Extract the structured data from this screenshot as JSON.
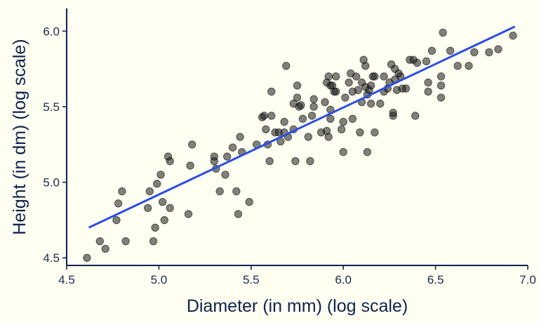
{
  "chart_data": {
    "type": "scatter",
    "title": "",
    "xlabel": "Diameter (in mm) (log scale)",
    "ylabel": "Height (in dm) (log scale)",
    "xlim": [
      4.5,
      7.0
    ],
    "ylim": [
      4.45,
      6.15
    ],
    "x_ticks": [
      4.5,
      5.0,
      5.5,
      6.0,
      6.5,
      7.0
    ],
    "x_tick_labels": [
      "4.5",
      "5.0",
      "5.5",
      "6.0",
      "6.5",
      "7.0"
    ],
    "y_ticks": [
      4.5,
      5.0,
      5.5,
      6.0
    ],
    "y_tick_labels": [
      "4.5",
      "5.0",
      "5.5",
      "6.0"
    ],
    "grid": false,
    "colors": {
      "points": "#333333",
      "fit_line": "#2c4ee6",
      "axis": "#0f2350",
      "background": "#fffff2"
    },
    "fit_line": {
      "x": [
        4.62,
        6.93
      ],
      "y": [
        4.7,
        6.03
      ]
    },
    "points": [
      {
        "x": 4.61,
        "y": 4.5
      },
      {
        "x": 4.68,
        "y": 4.61
      },
      {
        "x": 4.71,
        "y": 4.56
      },
      {
        "x": 4.77,
        "y": 4.75
      },
      {
        "x": 4.78,
        "y": 4.86
      },
      {
        "x": 4.8,
        "y": 4.94
      },
      {
        "x": 4.82,
        "y": 4.61
      },
      {
        "x": 4.94,
        "y": 4.83
      },
      {
        "x": 4.95,
        "y": 4.94
      },
      {
        "x": 4.97,
        "y": 4.61
      },
      {
        "x": 4.98,
        "y": 4.7
      },
      {
        "x": 4.99,
        "y": 4.99
      },
      {
        "x": 5.01,
        "y": 5.05
      },
      {
        "x": 5.02,
        "y": 4.87
      },
      {
        "x": 5.03,
        "y": 4.75
      },
      {
        "x": 5.05,
        "y": 5.17
      },
      {
        "x": 5.06,
        "y": 5.14
      },
      {
        "x": 5.06,
        "y": 4.83
      },
      {
        "x": 5.16,
        "y": 4.79
      },
      {
        "x": 5.17,
        "y": 5.11
      },
      {
        "x": 5.18,
        "y": 5.25
      },
      {
        "x": 5.3,
        "y": 5.14
      },
      {
        "x": 5.3,
        "y": 5.17
      },
      {
        "x": 5.31,
        "y": 5.09
      },
      {
        "x": 5.33,
        "y": 4.94
      },
      {
        "x": 5.36,
        "y": 5.05
      },
      {
        "x": 5.37,
        "y": 5.17
      },
      {
        "x": 5.4,
        "y": 5.23
      },
      {
        "x": 5.42,
        "y": 4.94
      },
      {
        "x": 5.43,
        "y": 4.79
      },
      {
        "x": 5.44,
        "y": 5.3
      },
      {
        "x": 5.45,
        "y": 5.2
      },
      {
        "x": 5.49,
        "y": 4.87
      },
      {
        "x": 5.53,
        "y": 5.25
      },
      {
        "x": 5.56,
        "y": 5.43
      },
      {
        "x": 5.57,
        "y": 5.44
      },
      {
        "x": 5.58,
        "y": 5.35
      },
      {
        "x": 5.59,
        "y": 5.25
      },
      {
        "x": 5.6,
        "y": 5.14
      },
      {
        "x": 5.61,
        "y": 5.6
      },
      {
        "x": 5.61,
        "y": 5.44
      },
      {
        "x": 5.63,
        "y": 5.33
      },
      {
        "x": 5.65,
        "y": 5.33
      },
      {
        "x": 5.66,
        "y": 5.27
      },
      {
        "x": 5.68,
        "y": 5.33
      },
      {
        "x": 5.68,
        "y": 5.4
      },
      {
        "x": 5.69,
        "y": 5.77
      },
      {
        "x": 5.7,
        "y": 5.3
      },
      {
        "x": 5.73,
        "y": 5.35
      },
      {
        "x": 5.73,
        "y": 5.52
      },
      {
        "x": 5.74,
        "y": 5.14
      },
      {
        "x": 5.75,
        "y": 5.56
      },
      {
        "x": 5.75,
        "y": 5.64
      },
      {
        "x": 5.76,
        "y": 5.5
      },
      {
        "x": 5.77,
        "y": 5.51
      },
      {
        "x": 5.78,
        "y": 5.42
      },
      {
        "x": 5.81,
        "y": 5.3
      },
      {
        "x": 5.82,
        "y": 5.14
      },
      {
        "x": 5.83,
        "y": 5.44
      },
      {
        "x": 5.84,
        "y": 5.5
      },
      {
        "x": 5.84,
        "y": 5.55
      },
      {
        "x": 5.88,
        "y": 5.33
      },
      {
        "x": 5.9,
        "y": 5.53
      },
      {
        "x": 5.91,
        "y": 5.66
      },
      {
        "x": 5.91,
        "y": 5.34
      },
      {
        "x": 5.92,
        "y": 5.3
      },
      {
        "x": 5.92,
        "y": 5.7
      },
      {
        "x": 5.93,
        "y": 5.64
      },
      {
        "x": 5.93,
        "y": 5.48
      },
      {
        "x": 5.93,
        "y": 5.42
      },
      {
        "x": 5.94,
        "y": 5.64
      },
      {
        "x": 5.95,
        "y": 5.6
      },
      {
        "x": 5.96,
        "y": 5.7
      },
      {
        "x": 5.96,
        "y": 5.6
      },
      {
        "x": 5.99,
        "y": 5.35
      },
      {
        "x": 6.0,
        "y": 5.2
      },
      {
        "x": 6.0,
        "y": 5.4
      },
      {
        "x": 6.01,
        "y": 5.56
      },
      {
        "x": 6.03,
        "y": 5.66
      },
      {
        "x": 6.04,
        "y": 5.72
      },
      {
        "x": 6.05,
        "y": 5.6
      },
      {
        "x": 6.05,
        "y": 5.42
      },
      {
        "x": 6.07,
        "y": 5.7
      },
      {
        "x": 6.08,
        "y": 5.61
      },
      {
        "x": 6.09,
        "y": 5.33
      },
      {
        "x": 6.1,
        "y": 5.53
      },
      {
        "x": 6.1,
        "y": 5.66
      },
      {
        "x": 6.11,
        "y": 5.81
      },
      {
        "x": 6.12,
        "y": 5.77
      },
      {
        "x": 6.12,
        "y": 5.63
      },
      {
        "x": 6.13,
        "y": 5.58
      },
      {
        "x": 6.13,
        "y": 5.2
      },
      {
        "x": 6.14,
        "y": 5.61
      },
      {
        "x": 6.15,
        "y": 5.52
      },
      {
        "x": 6.15,
        "y": 5.64
      },
      {
        "x": 6.16,
        "y": 5.7
      },
      {
        "x": 6.17,
        "y": 5.7
      },
      {
        "x": 6.17,
        "y": 5.33
      },
      {
        "x": 6.2,
        "y": 5.52
      },
      {
        "x": 6.22,
        "y": 5.6
      },
      {
        "x": 6.22,
        "y": 5.7
      },
      {
        "x": 6.24,
        "y": 5.62
      },
      {
        "x": 6.25,
        "y": 5.66
      },
      {
        "x": 6.26,
        "y": 5.78
      },
      {
        "x": 6.27,
        "y": 5.44
      },
      {
        "x": 6.27,
        "y": 5.46
      },
      {
        "x": 6.28,
        "y": 5.68
      },
      {
        "x": 6.28,
        "y": 5.75
      },
      {
        "x": 6.29,
        "y": 5.61
      },
      {
        "x": 6.3,
        "y": 5.72
      },
      {
        "x": 6.31,
        "y": 5.7
      },
      {
        "x": 6.32,
        "y": 5.62
      },
      {
        "x": 6.34,
        "y": 5.62
      },
      {
        "x": 6.36,
        "y": 5.81
      },
      {
        "x": 6.38,
        "y": 5.81
      },
      {
        "x": 6.39,
        "y": 5.44
      },
      {
        "x": 6.4,
        "y": 5.79
      },
      {
        "x": 6.45,
        "y": 5.8
      },
      {
        "x": 6.46,
        "y": 5.66
      },
      {
        "x": 6.46,
        "y": 5.6
      },
      {
        "x": 6.48,
        "y": 5.87
      },
      {
        "x": 6.53,
        "y": 5.56
      },
      {
        "x": 6.53,
        "y": 5.64
      },
      {
        "x": 6.53,
        "y": 5.7
      },
      {
        "x": 6.54,
        "y": 5.99
      },
      {
        "x": 6.58,
        "y": 5.87
      },
      {
        "x": 6.62,
        "y": 5.77
      },
      {
        "x": 6.68,
        "y": 5.77
      },
      {
        "x": 6.71,
        "y": 5.86
      },
      {
        "x": 6.79,
        "y": 5.86
      },
      {
        "x": 6.84,
        "y": 5.88
      },
      {
        "x": 6.92,
        "y": 5.97
      }
    ]
  }
}
